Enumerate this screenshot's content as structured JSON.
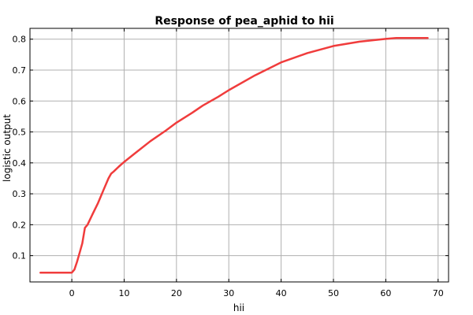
{
  "chart_data": {
    "type": "line",
    "title": "Response of pea_aphid to hii",
    "xlabel": "hii",
    "ylabel": "logistic output",
    "xlim": [
      -8,
      72
    ],
    "ylim": [
      0.015,
      0.835
    ],
    "xticks": [
      0,
      10,
      20,
      30,
      40,
      50,
      60,
      70
    ],
    "yticks": [
      0.1,
      0.2,
      0.3,
      0.4,
      0.5,
      0.6,
      0.7,
      0.8
    ],
    "grid": true,
    "series": [
      {
        "color": "#f03c3c",
        "x": [
          -6,
          -1,
          0,
          0.5,
          1,
          1.5,
          2,
          2.5,
          3,
          4,
          5,
          6,
          7,
          7.5,
          8,
          9,
          10,
          12,
          15,
          18,
          20,
          23,
          25,
          28,
          30,
          35,
          40,
          45,
          50,
          55,
          60,
          62,
          68
        ],
        "y": [
          0.045,
          0.045,
          0.045,
          0.055,
          0.08,
          0.11,
          0.14,
          0.19,
          0.2,
          0.235,
          0.27,
          0.31,
          0.35,
          0.365,
          0.372,
          0.388,
          0.403,
          0.43,
          0.47,
          0.505,
          0.53,
          0.562,
          0.585,
          0.614,
          0.635,
          0.683,
          0.725,
          0.755,
          0.778,
          0.792,
          0.801,
          0.804,
          0.804
        ]
      }
    ]
  }
}
